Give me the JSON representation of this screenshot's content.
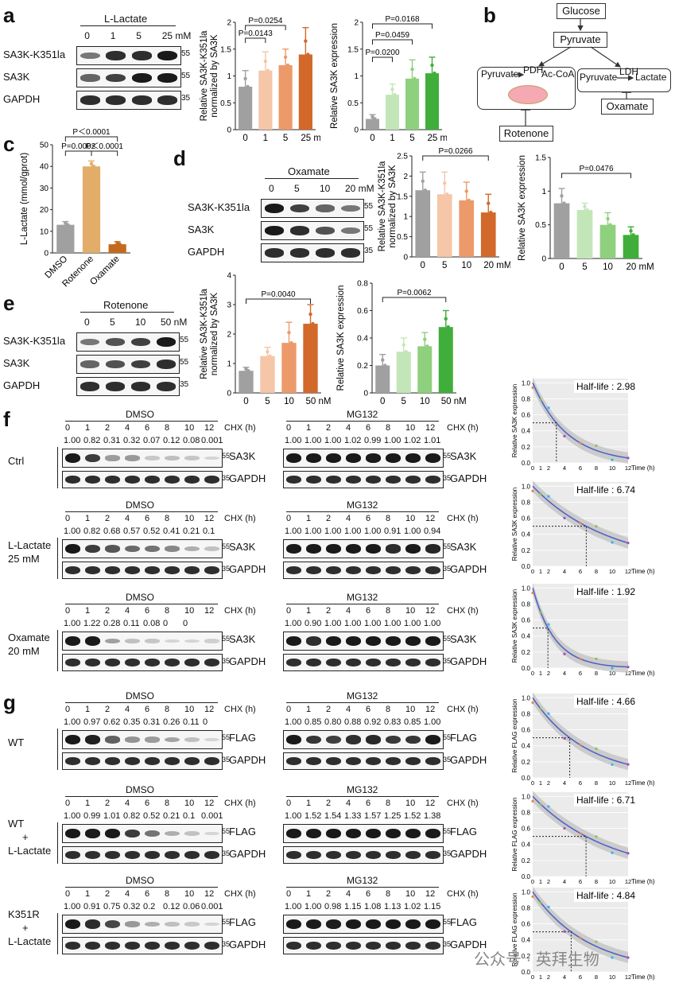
{
  "panels": {
    "a": "a",
    "b": "b",
    "c": "c",
    "d": "d",
    "e": "e",
    "f": "f",
    "g": "g"
  },
  "a": {
    "treatment": "L-Lactate",
    "doses": [
      "0",
      "1",
      "5",
      "25 mM"
    ],
    "blot_rows": [
      "SA3K-K351la",
      "SA3K",
      "GAPDH"
    ],
    "mw": [
      "55",
      "55",
      "35"
    ]
  },
  "b": {
    "glucose": "Glucose",
    "pyruvate": "Pyruvate",
    "pdh": "PDH",
    "acoa": "Ac-CoA",
    "ldh": "LDH",
    "lactate": "Lactate",
    "oxamate": "Oxamate",
    "rotenone": "Rotenone"
  },
  "c": {
    "ylabel": "L-Lactate (mmol/gprot)"
  },
  "d": {
    "treatment": "Oxamate",
    "doses": [
      "0",
      "5",
      "10",
      "20 mM"
    ],
    "blot_rows": [
      "SA3K-K351la",
      "SA3K",
      "GAPDH"
    ],
    "mw": [
      "55",
      "55",
      "35"
    ]
  },
  "e": {
    "treatment": "Rotenone",
    "doses": [
      "0",
      "5",
      "10",
      "50 nM"
    ],
    "blot_rows": [
      "SA3K-K351la",
      "SA3K",
      "GAPDH"
    ],
    "mw": [
      "55",
      "55",
      "35"
    ]
  },
  "cx": {
    "chx": "CHX (h)",
    "times": [
      "0",
      "1",
      "2",
      "4",
      "6",
      "8",
      "10",
      "12"
    ],
    "dmso": "DMSO",
    "mg132": "MG132"
  },
  "f": {
    "rows": [
      {
        "label": "Ctrl",
        "dmso_vals": [
          "1.00",
          "0.82",
          "0.31",
          "0.32",
          "0.07",
          "0.12",
          "0.08",
          "0.001"
        ],
        "mg_vals": [
          "1.00",
          "1.00",
          "1.00",
          "1.02",
          "0.99",
          "1.00",
          "1.02",
          "1.01"
        ],
        "target": "SA3K",
        "half": "Half-life : 2.98"
      },
      {
        "label": "L-Lactate\n25 mM",
        "dmso_vals": [
          "1.00",
          "0.82",
          "0.68",
          "0.57",
          "0.52",
          "0.41",
          "0.21",
          "0.1"
        ],
        "mg_vals": [
          "1.00",
          "1.00",
          "1.00",
          "1.00",
          "1.00",
          "0.91",
          "1.00",
          "0.94"
        ],
        "target": "SA3K",
        "half": "Half-life : 6.74"
      },
      {
        "label": "Oxamate\n20 mM",
        "dmso_vals": [
          "1.00",
          "1.22",
          "0.28",
          "0.11",
          "0.08",
          "0",
          "0",
          ""
        ],
        "mg_vals": [
          "1.00",
          "0.90",
          "1.00",
          "1.00",
          "1.00",
          "1.00",
          "1.00",
          "1.00"
        ],
        "target": "SA3K",
        "half": "Half-life : 1.92"
      }
    ],
    "ylabel": "Relative SA3K expression"
  },
  "g": {
    "rows": [
      {
        "label": "WT",
        "dmso_vals": [
          "1.00",
          "0.97",
          "0.62",
          "0.35",
          "0.31",
          "0.26",
          "0.11",
          "0"
        ],
        "mg_vals": [
          "1.00",
          "0.85",
          "0.80",
          "0.88",
          "0.92",
          "0.83",
          "0.85",
          "1.00"
        ],
        "target": "FLAG",
        "half": "Half-life : 4.66"
      },
      {
        "label": "WT\n+\nL-Lactate",
        "dmso_vals": [
          "1.00",
          "0.99",
          "1.01",
          "0.82",
          "0.52",
          "0.21",
          "0.1",
          "0.001"
        ],
        "mg_vals": [
          "1.00",
          "1.52",
          "1.54",
          "1.33",
          "1.57",
          "1.25",
          "1.52",
          "1.38"
        ],
        "target": "FLAG",
        "half": "Half-life : 6.71"
      },
      {
        "label": "K351R\n+\nL-Lactate",
        "dmso_vals": [
          "1.00",
          "0.91",
          "0.75",
          "0.32",
          "0.2",
          "0.12",
          "0.06",
          "0.001"
        ],
        "mg_vals": [
          "1.00",
          "1.00",
          "0.98",
          "1.15",
          "1.08",
          "1.13",
          "1.02",
          "1.15"
        ],
        "target": "FLAG",
        "half": "Half-life : 4.84"
      }
    ],
    "ylabel": "Relative FLAG expression"
  },
  "gapdh": "GAPDH",
  "watermark": "公众号 · 英拜生物",
  "chart_data": [
    {
      "id": "a1",
      "type": "bar",
      "categories": [
        "0",
        "1",
        "5",
        "25 mM"
      ],
      "values": [
        0.8,
        1.1,
        1.2,
        1.4
      ],
      "errors": [
        0.3,
        0.35,
        0.3,
        0.5
      ],
      "ylabel": "Relative SA3K-K351la\nnormalized by SA3K",
      "ylim": [
        0,
        2.0
      ],
      "yticks": [
        0,
        0.5,
        1.0,
        1.5,
        2.0
      ],
      "pvals": [
        "P=0.0143",
        "P=0.0254"
      ]
    },
    {
      "id": "a2",
      "type": "bar",
      "categories": [
        "0",
        "1",
        "5",
        "25 mM"
      ],
      "values": [
        0.2,
        0.65,
        0.95,
        1.05
      ],
      "errors": [
        0.08,
        0.2,
        0.35,
        0.3
      ],
      "ylabel": "Relative SA3K expression",
      "ylim": [
        0,
        2.0
      ],
      "yticks": [
        0,
        0.5,
        1.0,
        1.5,
        2.0
      ],
      "pvals": [
        "P=0.0200",
        "P=0.0459",
        "P=0.0168"
      ]
    },
    {
      "id": "c",
      "type": "bar",
      "categories": [
        "DMSO",
        "Rotenone",
        "Oxamate"
      ],
      "values": [
        13,
        40,
        4
      ],
      "errors": [
        1.5,
        2.5,
        1.2
      ],
      "ylabel": "L-Lactate (mmol/gprot)",
      "ylim": [
        0,
        50
      ],
      "yticks": [
        0,
        10,
        20,
        30,
        40,
        50
      ],
      "pvals": [
        "P=0.0002",
        "P＜0.0001",
        "P＜0.0001"
      ]
    },
    {
      "id": "d1",
      "type": "bar",
      "categories": [
        "0",
        "5",
        "10",
        "20 mM"
      ],
      "values": [
        1.65,
        1.55,
        1.4,
        1.1
      ],
      "errors": [
        0.45,
        0.55,
        0.45,
        0.45
      ],
      "ylabel": "Relative SA3K-K351la\nnormalized by SA3K",
      "ylim": [
        0,
        2.5
      ],
      "yticks": [
        0,
        0.5,
        1.0,
        1.5,
        2.0,
        2.5
      ],
      "pvals": [
        "P=0.0266"
      ]
    },
    {
      "id": "d2",
      "type": "bar",
      "categories": [
        "0",
        "5",
        "10",
        "20 mM"
      ],
      "values": [
        0.82,
        0.72,
        0.5,
        0.35
      ],
      "errors": [
        0.22,
        0.1,
        0.18,
        0.12
      ],
      "ylabel": "Relative SA3K expression",
      "ylim": [
        0,
        1.5
      ],
      "yticks": [
        0,
        0.5,
        1.0,
        1.5
      ],
      "pvals": [
        "P=0.0476"
      ]
    },
    {
      "id": "e1",
      "type": "bar",
      "categories": [
        "0",
        "5",
        "10",
        "50 nM"
      ],
      "values": [
        0.75,
        1.25,
        1.7,
        2.35
      ],
      "errors": [
        0.12,
        0.3,
        0.7,
        0.65
      ],
      "ylabel": "Relative SA3K-K351la\nnormalized by SA3K",
      "ylim": [
        0,
        4
      ],
      "yticks": [
        0,
        1,
        2,
        3,
        4
      ],
      "pvals": [
        "P=0.0040"
      ]
    },
    {
      "id": "e2",
      "type": "bar",
      "categories": [
        "0",
        "5",
        "10",
        "50 nM"
      ],
      "values": [
        0.2,
        0.3,
        0.34,
        0.48
      ],
      "errors": [
        0.08,
        0.1,
        0.1,
        0.12
      ],
      "ylabel": "Relative SA3K expression",
      "ylim": [
        0,
        0.8
      ],
      "yticks": [
        0,
        0.2,
        0.4,
        0.6,
        0.8
      ],
      "pvals": [
        "P=0.0062"
      ]
    }
  ]
}
